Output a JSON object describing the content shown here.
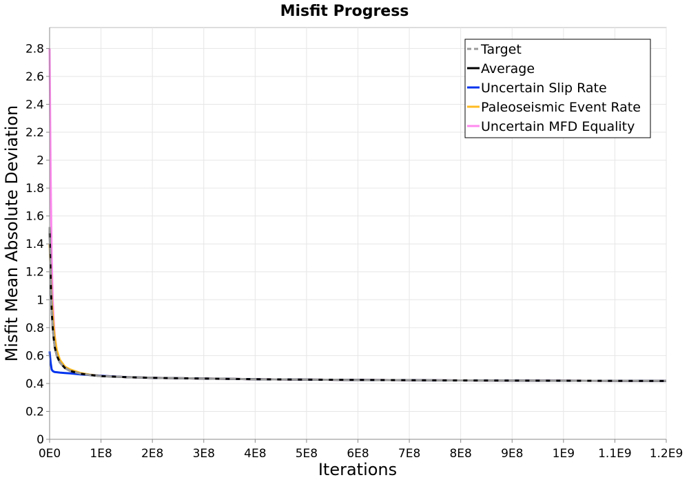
{
  "chart_data": {
    "type": "line",
    "title": "Misfit Progress",
    "xlabel": "Iterations",
    "ylabel": "Misfit Mean Absolute Deviation",
    "xlim": [
      0,
      1200000000
    ],
    "ylim": [
      0,
      2.95
    ],
    "x_ticks": [
      {
        "value": 0,
        "label": "0E0"
      },
      {
        "value": 100000000,
        "label": "1E8"
      },
      {
        "value": 200000000,
        "label": "2E8"
      },
      {
        "value": 300000000,
        "label": "3E8"
      },
      {
        "value": 400000000,
        "label": "4E8"
      },
      {
        "value": 500000000,
        "label": "5E8"
      },
      {
        "value": 600000000,
        "label": "6E8"
      },
      {
        "value": 700000000,
        "label": "7E8"
      },
      {
        "value": 800000000,
        "label": "8E8"
      },
      {
        "value": 900000000,
        "label": "9E8"
      },
      {
        "value": 1000000000,
        "label": "1E9"
      },
      {
        "value": 1100000000,
        "label": "1.1E9"
      },
      {
        "value": 1200000000,
        "label": "1.2E9"
      }
    ],
    "y_ticks": [
      {
        "value": 0,
        "label": "0"
      },
      {
        "value": 0.2,
        "label": "0.2"
      },
      {
        "value": 0.4,
        "label": "0.4"
      },
      {
        "value": 0.6,
        "label": "0.6"
      },
      {
        "value": 0.8,
        "label": "0.8"
      },
      {
        "value": 1.0,
        "label": "1"
      },
      {
        "value": 1.2,
        "label": "1.2"
      },
      {
        "value": 1.4,
        "label": "1.4"
      },
      {
        "value": 1.6,
        "label": "1.6"
      },
      {
        "value": 1.8,
        "label": "1.8"
      },
      {
        "value": 2.0,
        "label": "2"
      },
      {
        "value": 2.2,
        "label": "2.2"
      },
      {
        "value": 2.4,
        "label": "2.4"
      },
      {
        "value": 2.6,
        "label": "2.6"
      },
      {
        "value": 2.8,
        "label": "2.8"
      }
    ],
    "grid": true,
    "legend_position": "top-right",
    "series": [
      {
        "name": "Uncertain MFD Equality",
        "color": "#ff88ee",
        "style": "solid",
        "x": [
          0,
          2000000,
          4000000,
          6000000,
          8000000,
          10000000,
          14000000,
          20000000,
          30000000,
          40000000,
          60000000,
          80000000,
          100000000,
          150000000,
          200000000,
          300000000,
          400000000,
          600000000,
          800000000,
          1000000000,
          1200000000
        ],
        "y": [
          2.8,
          1.9,
          1.3,
          1.0,
          0.85,
          0.74,
          0.63,
          0.56,
          0.51,
          0.49,
          0.47,
          0.46,
          0.455,
          0.445,
          0.44,
          0.435,
          0.43,
          0.425,
          0.422,
          0.42,
          0.418
        ]
      },
      {
        "name": "Paleoseismic Event Rate",
        "color": "#ffbb22",
        "style": "solid",
        "x": [
          0,
          2000000,
          4000000,
          6000000,
          8000000,
          10000000,
          14000000,
          20000000,
          30000000,
          40000000,
          60000000,
          80000000,
          100000000,
          150000000,
          200000000,
          300000000,
          400000000,
          600000000,
          800000000,
          1000000000,
          1200000000
        ],
        "y": [
          1.4,
          1.2,
          1.0,
          0.9,
          0.8,
          0.73,
          0.64,
          0.57,
          0.52,
          0.5,
          0.475,
          0.462,
          0.455,
          0.445,
          0.44,
          0.435,
          0.43,
          0.425,
          0.422,
          0.42,
          0.418
        ]
      },
      {
        "name": "Uncertain Slip Rate",
        "color": "#0033ee",
        "style": "solid",
        "x": [
          0,
          2000000,
          4000000,
          6000000,
          8000000,
          10000000,
          20000000,
          30000000,
          40000000,
          60000000,
          80000000,
          100000000,
          150000000,
          200000000,
          300000000,
          400000000,
          600000000,
          800000000,
          1000000000,
          1200000000
        ],
        "y": [
          0.63,
          0.55,
          0.5,
          0.49,
          0.485,
          0.482,
          0.478,
          0.475,
          0.472,
          0.465,
          0.46,
          0.455,
          0.445,
          0.44,
          0.435,
          0.43,
          0.425,
          0.422,
          0.42,
          0.418
        ]
      },
      {
        "name": "Average",
        "color": "#000000",
        "style": "solid",
        "x": [
          0,
          2000000,
          4000000,
          6000000,
          8000000,
          10000000,
          14000000,
          20000000,
          30000000,
          40000000,
          60000000,
          80000000,
          100000000,
          150000000,
          200000000,
          300000000,
          400000000,
          600000000,
          800000000,
          1000000000,
          1200000000
        ],
        "y": [
          1.52,
          1.15,
          0.92,
          0.8,
          0.72,
          0.66,
          0.6,
          0.55,
          0.51,
          0.49,
          0.47,
          0.46,
          0.453,
          0.445,
          0.44,
          0.435,
          0.43,
          0.425,
          0.422,
          0.42,
          0.418
        ]
      },
      {
        "name": "Target",
        "color": "#999999",
        "style": "dashed",
        "x": [
          0,
          2000000,
          4000000,
          6000000,
          8000000,
          10000000,
          14000000,
          20000000,
          30000000,
          40000000,
          60000000,
          80000000,
          100000000,
          150000000,
          200000000,
          300000000,
          400000000,
          600000000,
          800000000,
          1000000000,
          1200000000
        ],
        "y": [
          1.52,
          1.15,
          0.92,
          0.8,
          0.72,
          0.66,
          0.6,
          0.55,
          0.51,
          0.49,
          0.47,
          0.46,
          0.453,
          0.445,
          0.44,
          0.435,
          0.43,
          0.425,
          0.422,
          0.42,
          0.418
        ]
      }
    ],
    "legend": [
      {
        "name": "Target",
        "color": "#999999",
        "style": "dashed"
      },
      {
        "name": "Average",
        "color": "#000000",
        "style": "solid"
      },
      {
        "name": "Uncertain Slip Rate",
        "color": "#0033ee",
        "style": "solid"
      },
      {
        "name": "Paleoseismic Event Rate",
        "color": "#ffbb22",
        "style": "solid"
      },
      {
        "name": "Uncertain MFD Equality",
        "color": "#ff88ee",
        "style": "solid"
      }
    ]
  }
}
